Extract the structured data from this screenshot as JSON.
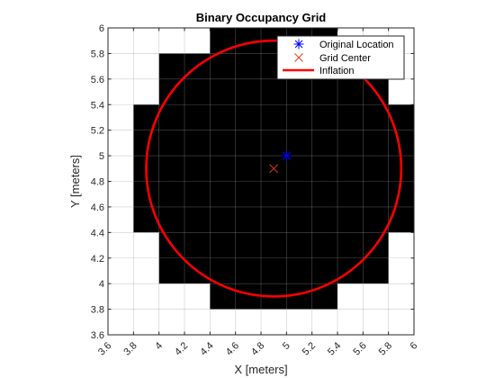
{
  "chart_data": {
    "type": "scatter",
    "title": "Binary Occupancy Grid",
    "xlabel": "X [meters]",
    "ylabel": "Y [meters]",
    "xlim": [
      3.6,
      6
    ],
    "ylim": [
      3.6,
      6
    ],
    "xticks": [
      "3.6",
      "3.8",
      "4",
      "4.2",
      "4.4",
      "4.6",
      "4.8",
      "5",
      "5.2",
      "5.4",
      "5.6",
      "5.8",
      "6"
    ],
    "yticks": [
      "3.6",
      "3.8",
      "4",
      "4.2",
      "4.4",
      "4.6",
      "4.8",
      "5",
      "5.2",
      "5.4",
      "5.6",
      "5.8",
      "6"
    ],
    "grid": true,
    "legend_position": "top-right",
    "occupancy_grid": {
      "resolution": 0.2,
      "occupied_color": "#000000",
      "free_color": "#ffffff",
      "occupied_cells": [
        {
          "x": [
            4.4,
            5.4
          ],
          "y": [
            3.8,
            6.0
          ]
        },
        {
          "x": [
            4.0,
            5.8
          ],
          "y": [
            4.0,
            5.8
          ]
        },
        {
          "x": [
            3.8,
            6.0
          ],
          "y": [
            4.4,
            5.4
          ]
        }
      ]
    },
    "series": [
      {
        "name": "Original Location",
        "marker": "asterisk",
        "color": "#0000ff",
        "x": [
          5.0
        ],
        "y": [
          5.0
        ]
      },
      {
        "name": "Grid Center",
        "marker": "x",
        "color": "#e8381f",
        "x": [
          4.9
        ],
        "y": [
          4.9
        ]
      },
      {
        "name": "Inflation",
        "marker": "line",
        "color": "#ff0000",
        "shape": "circle",
        "center": [
          4.9,
          4.9
        ],
        "radius": 1.0
      }
    ]
  }
}
